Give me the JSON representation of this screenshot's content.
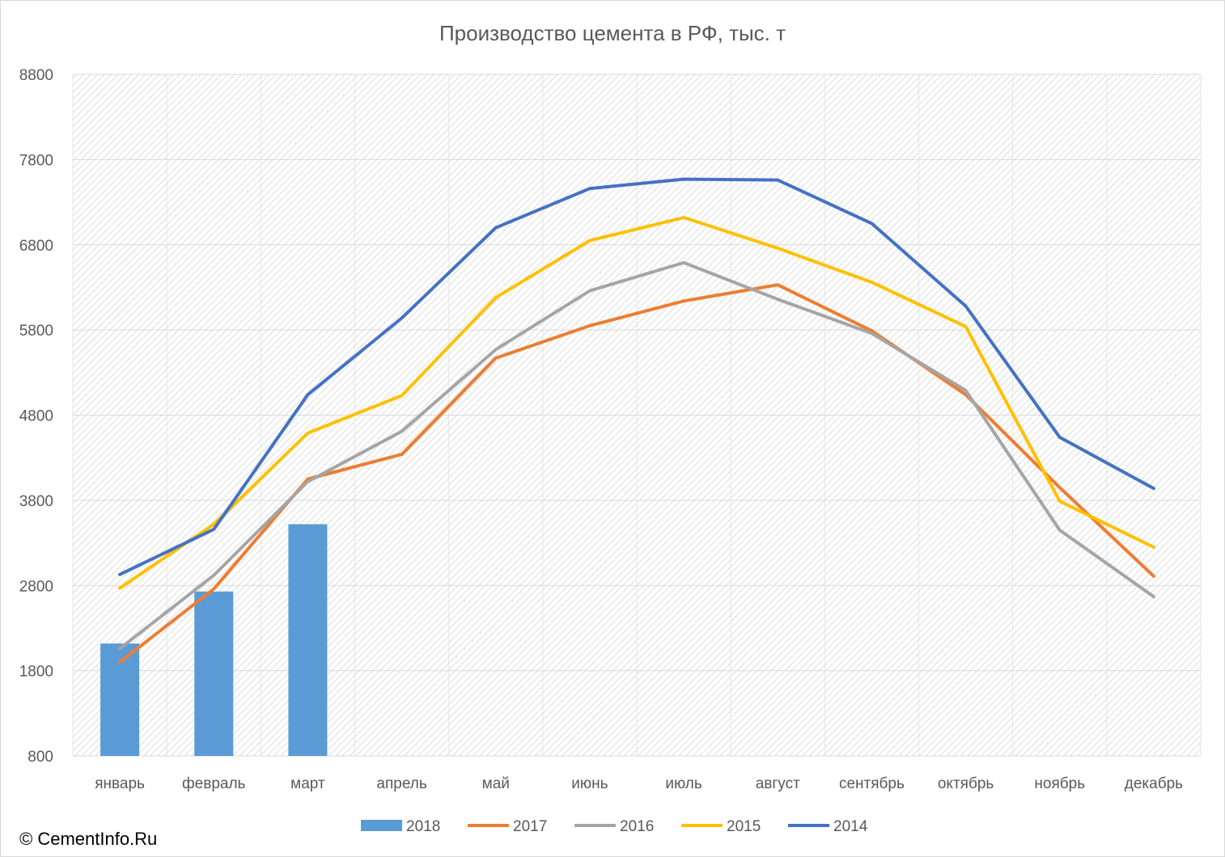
{
  "chart_data": {
    "type": "bar+line",
    "title": "Производство цемента в РФ, тыс. т",
    "xlabel": "",
    "ylabel": "",
    "categories": [
      "январь",
      "февраль",
      "март",
      "апрель",
      "май",
      "июнь",
      "июль",
      "август",
      "сентябрь",
      "октябрь",
      "ноябрь",
      "декабрь"
    ],
    "ylim": [
      800,
      8800
    ],
    "yticks": [
      800,
      1800,
      2800,
      3800,
      4800,
      5800,
      6800,
      7800,
      8800
    ],
    "grid": true,
    "legend_position": "bottom",
    "series": [
      {
        "name": "2018",
        "kind": "bar",
        "color": "#5b9bd5",
        "values": [
          2120,
          2730,
          3520,
          null,
          null,
          null,
          null,
          null,
          null,
          null,
          null,
          null
        ]
      },
      {
        "name": "2017",
        "kind": "line",
        "color": "#ed7d31",
        "values": [
          1900,
          2760,
          4050,
          4340,
          5470,
          5850,
          6140,
          6330,
          5790,
          5040,
          3950,
          2910
        ]
      },
      {
        "name": "2016",
        "kind": "line",
        "color": "#a5a5a5",
        "values": [
          2060,
          2920,
          4020,
          4610,
          5570,
          6260,
          6590,
          6160,
          5760,
          5090,
          3450,
          2670
        ]
      },
      {
        "name": "2015",
        "kind": "line",
        "color": "#ffc000",
        "values": [
          2770,
          3520,
          4590,
          5030,
          6180,
          6850,
          7120,
          6760,
          6360,
          5840,
          3790,
          3250
        ]
      },
      {
        "name": "2014",
        "kind": "line",
        "color": "#4472c4",
        "values": [
          2930,
          3460,
          5040,
          5940,
          7000,
          7460,
          7570,
          7560,
          7050,
          6080,
          4540,
          3940
        ]
      }
    ]
  },
  "footer": {
    "copyright": "© CementInfo.Ru"
  }
}
